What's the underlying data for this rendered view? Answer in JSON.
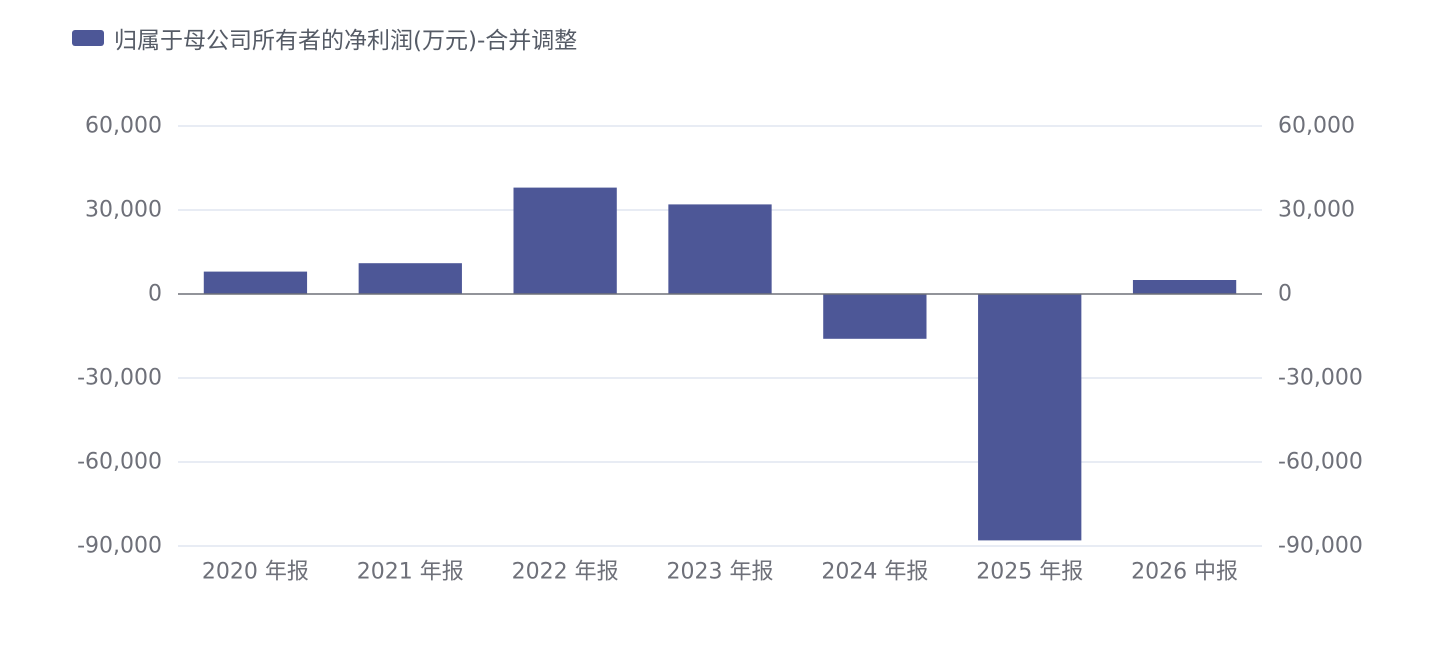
{
  "chart_data": {
    "type": "bar",
    "categories": [
      "2020 年报",
      "2021 年报",
      "2022 年报",
      "2023 年报",
      "2024 年报",
      "2025 年报",
      "2026 中报"
    ],
    "series": [
      {
        "name": "归属于母公司所有者的净利润(万元)-合并调整",
        "color": "#4d5797",
        "values": [
          8000,
          11000,
          38000,
          32000,
          -16000,
          -88000,
          5000
        ]
      }
    ],
    "ylim": [
      -90000,
      60000
    ],
    "yticks": [
      60000,
      30000,
      0,
      -30000,
      -60000,
      -90000
    ],
    "ytick_labels": [
      "60,000",
      "30,000",
      "0",
      "-30,000",
      "-60,000",
      "-90,000"
    ],
    "y_axis_right": true,
    "grid": true,
    "legend_position": "top-left",
    "xlabel": "",
    "ylabel": ""
  }
}
